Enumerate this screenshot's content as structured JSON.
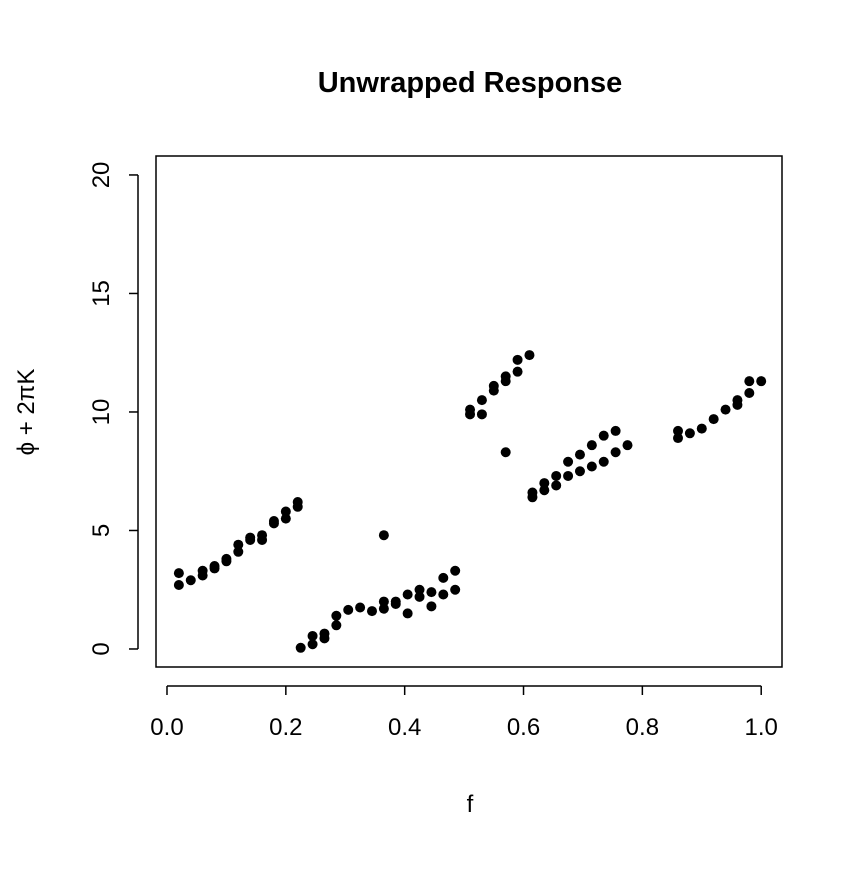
{
  "chart_data": {
    "type": "scatter",
    "title": "Unwrapped Response",
    "xlabel": "f",
    "ylabel": "ϕ + 2πK",
    "color": "#000000",
    "x": [
      0.02,
      0.02,
      0.04,
      0.06,
      0.06,
      0.08,
      0.08,
      0.1,
      0.1,
      0.12,
      0.12,
      0.14,
      0.14,
      0.16,
      0.16,
      0.18,
      0.18,
      0.2,
      0.2,
      0.22,
      0.22,
      0.225,
      0.245,
      0.245,
      0.265,
      0.265,
      0.285,
      0.285,
      0.305,
      0.325,
      0.345,
      0.365,
      0.365,
      0.365,
      0.385,
      0.385,
      0.405,
      0.405,
      0.425,
      0.425,
      0.445,
      0.445,
      0.465,
      0.465,
      0.485,
      0.485,
      0.51,
      0.51,
      0.53,
      0.53,
      0.55,
      0.55,
      0.57,
      0.57,
      0.57,
      0.59,
      0.59,
      0.61,
      0.615,
      0.615,
      0.635,
      0.635,
      0.655,
      0.655,
      0.675,
      0.675,
      0.695,
      0.695,
      0.715,
      0.715,
      0.735,
      0.735,
      0.755,
      0.755,
      0.775,
      0.86,
      0.86,
      0.88,
      0.9,
      0.92,
      0.94,
      0.96,
      0.96,
      0.98,
      0.98,
      1.0
    ],
    "values": [
      2.7,
      3.2,
      2.9,
      3.1,
      3.3,
      3.5,
      3.4,
      3.8,
      3.7,
      4.1,
      4.4,
      4.6,
      4.7,
      4.6,
      4.8,
      5.3,
      5.4,
      5.5,
      5.8,
      6.0,
      6.2,
      0.05,
      0.2,
      0.55,
      0.45,
      0.65,
      1.0,
      1.4,
      1.65,
      1.75,
      1.6,
      1.7,
      2.0,
      4.8,
      1.9,
      2.0,
      1.5,
      2.3,
      2.2,
      2.5,
      1.8,
      2.4,
      2.3,
      3.0,
      2.5,
      3.3,
      9.9,
      10.1,
      9.9,
      10.5,
      10.9,
      11.1,
      11.3,
      11.5,
      8.3,
      11.7,
      12.2,
      12.4,
      6.4,
      6.6,
      6.7,
      7.0,
      6.9,
      7.3,
      7.3,
      7.9,
      7.5,
      8.2,
      7.7,
      8.6,
      7.9,
      9.0,
      8.3,
      9.2,
      8.6,
      8.9,
      9.2,
      9.1,
      9.3,
      9.7,
      10.1,
      10.3,
      10.5,
      10.8,
      11.3,
      11.3
    ],
    "xlim": [
      -0.0185,
      1.035
    ],
    "ylim": [
      -0.76,
      20.8
    ],
    "xticks": [
      {
        "value": 0,
        "label": "0.0"
      },
      0.2,
      0.4,
      0.6,
      0.8,
      {
        "value": 1,
        "label": "1.0"
      }
    ],
    "yticks": [
      0,
      5,
      10,
      15,
      20
    ]
  }
}
